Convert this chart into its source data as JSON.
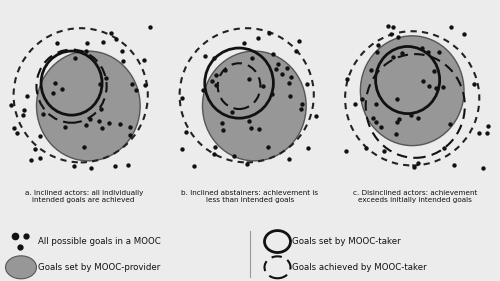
{
  "bg_color": "#ececec",
  "panel_bg": "#e0e0e0",
  "gray_fill": "#888888",
  "gray_fill_alpha": 0.85,
  "dot_color": "#111111",
  "title_a": "a. Inclined actors: all individually\nintended goals are achieved",
  "title_b": "b. Inclined abstainers: achievement is\nless than intended goals",
  "title_c": "c. Disinclined actors: achievement\nexceeds initially intended goals",
  "legend_text_1": "All possible goals in a MOOC",
  "legend_text_2": "Goals set by MOOC-provider",
  "legend_text_3": "Goals set by MOOC-taker",
  "legend_text_4": "Goals achieved by MOOC-taker"
}
